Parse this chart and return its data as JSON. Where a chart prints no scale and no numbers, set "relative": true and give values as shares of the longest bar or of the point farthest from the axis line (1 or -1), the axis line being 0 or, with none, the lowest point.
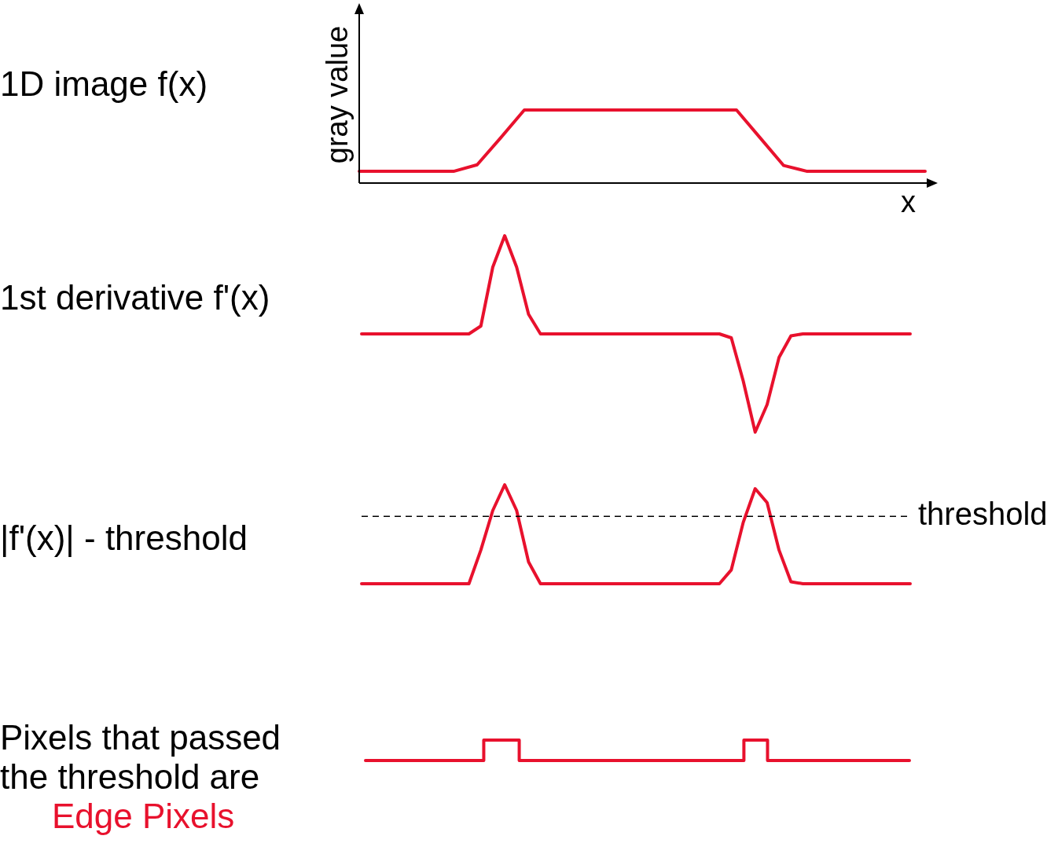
{
  "chart_data": [
    {
      "type": "line",
      "title": "1D image f(x)",
      "ylabel": "gray value",
      "xlabel": "x",
      "relative": true,
      "categories": [
        null,
        null,
        null,
        null,
        null,
        null,
        null,
        null,
        null,
        null,
        null,
        null,
        null,
        null,
        null,
        null,
        null,
        null,
        null,
        null,
        null,
        null,
        null,
        null,
        null
      ],
      "series": [
        {
          "color": "#e8112d",
          "values": [
            0.16,
            0.16,
            0.16,
            0.16,
            0.16,
            0.25,
            0.62,
            1,
            1,
            1,
            1,
            1,
            1,
            1,
            1,
            1,
            1,
            0.62,
            0.24,
            0.16,
            0.16,
            0.16,
            0.16,
            0.16,
            0.16
          ]
        }
      ]
    },
    {
      "type": "line",
      "title": "1st derivative f'(x)",
      "relative": true,
      "categories": [
        null,
        null,
        null,
        null,
        null,
        null,
        null,
        null,
        null,
        null,
        null,
        null,
        null,
        null,
        null,
        null,
        null,
        null,
        null,
        null,
        null,
        null,
        null,
        null,
        null,
        null,
        null,
        null,
        null,
        null,
        null,
        null,
        null,
        null,
        null,
        null,
        null,
        null,
        null,
        null,
        null,
        null,
        null,
        null,
        null,
        null,
        null
      ],
      "series": [
        {
          "color": "#e8112d",
          "values": [
            0.5,
            0.5,
            0.5,
            0.5,
            0.5,
            0.5,
            0.5,
            0.5,
            0.5,
            0.5,
            0.54,
            0.84,
            1,
            0.84,
            0.6,
            0.5,
            0.5,
            0.5,
            0.5,
            0.5,
            0.5,
            0.5,
            0.5,
            0.5,
            0.5,
            0.5,
            0.5,
            0.5,
            0.5,
            0.5,
            0.5,
            0.48,
            0.26,
            0,
            0.14,
            0.38,
            0.49,
            0.5,
            0.5,
            0.5,
            0.5,
            0.5,
            0.5,
            0.5,
            0.5,
            0.5,
            0.5
          ]
        }
      ]
    },
    {
      "type": "line",
      "title": "|f'(x)| - threshold",
      "relative": true,
      "categories": [
        null,
        null,
        null,
        null,
        null,
        null,
        null,
        null,
        null,
        null,
        null,
        null,
        null,
        null,
        null,
        null,
        null,
        null,
        null,
        null,
        null,
        null,
        null,
        null,
        null,
        null,
        null,
        null,
        null,
        null,
        null,
        null,
        null,
        null,
        null,
        null,
        null,
        null,
        null,
        null,
        null,
        null,
        null,
        null,
        null,
        null,
        null
      ],
      "ref_lines": [
        {
          "axis": "y",
          "value": 0.68,
          "label": "threshold",
          "color": "#000000",
          "line_style": "dashed"
        }
      ],
      "series": [
        {
          "color": "#e8112d",
          "values": [
            0,
            0,
            0,
            0,
            0,
            0,
            0,
            0,
            0,
            0,
            0.34,
            0.74,
            1,
            0.74,
            0.22,
            0,
            0,
            0,
            0,
            0,
            0,
            0,
            0,
            0,
            0,
            0,
            0,
            0,
            0,
            0,
            0,
            0.14,
            0.62,
            0.96,
            0.82,
            0.34,
            0.02,
            0,
            0,
            0,
            0,
            0,
            0,
            0,
            0,
            0,
            0
          ]
        }
      ]
    },
    {
      "type": "step",
      "title": "Pixels that passed the threshold are",
      "subtitle": "Edge Pixels",
      "relative": true,
      "categories": [
        null,
        null,
        null,
        null,
        null,
        null,
        null,
        null,
        null,
        null,
        null,
        null,
        null,
        null,
        null,
        null,
        null,
        null,
        null,
        null,
        null,
        null,
        null,
        null,
        null,
        null,
        null,
        null,
        null,
        null,
        null,
        null,
        null,
        null,
        null,
        null,
        null,
        null,
        null,
        null,
        null,
        null,
        null,
        null,
        null,
        null,
        null
      ],
      "series": [
        {
          "color": "#e8112d",
          "values": [
            0,
            0,
            0,
            0,
            0,
            0,
            0,
            0,
            0,
            0,
            0,
            1,
            1,
            1,
            0,
            0,
            0,
            0,
            0,
            0,
            0,
            0,
            0,
            0,
            0,
            0,
            0,
            0,
            0,
            0,
            0,
            0,
            0,
            1,
            1,
            0,
            0,
            0,
            0,
            0,
            0,
            0,
            0,
            0,
            0,
            0,
            0
          ]
        }
      ]
    }
  ]
}
